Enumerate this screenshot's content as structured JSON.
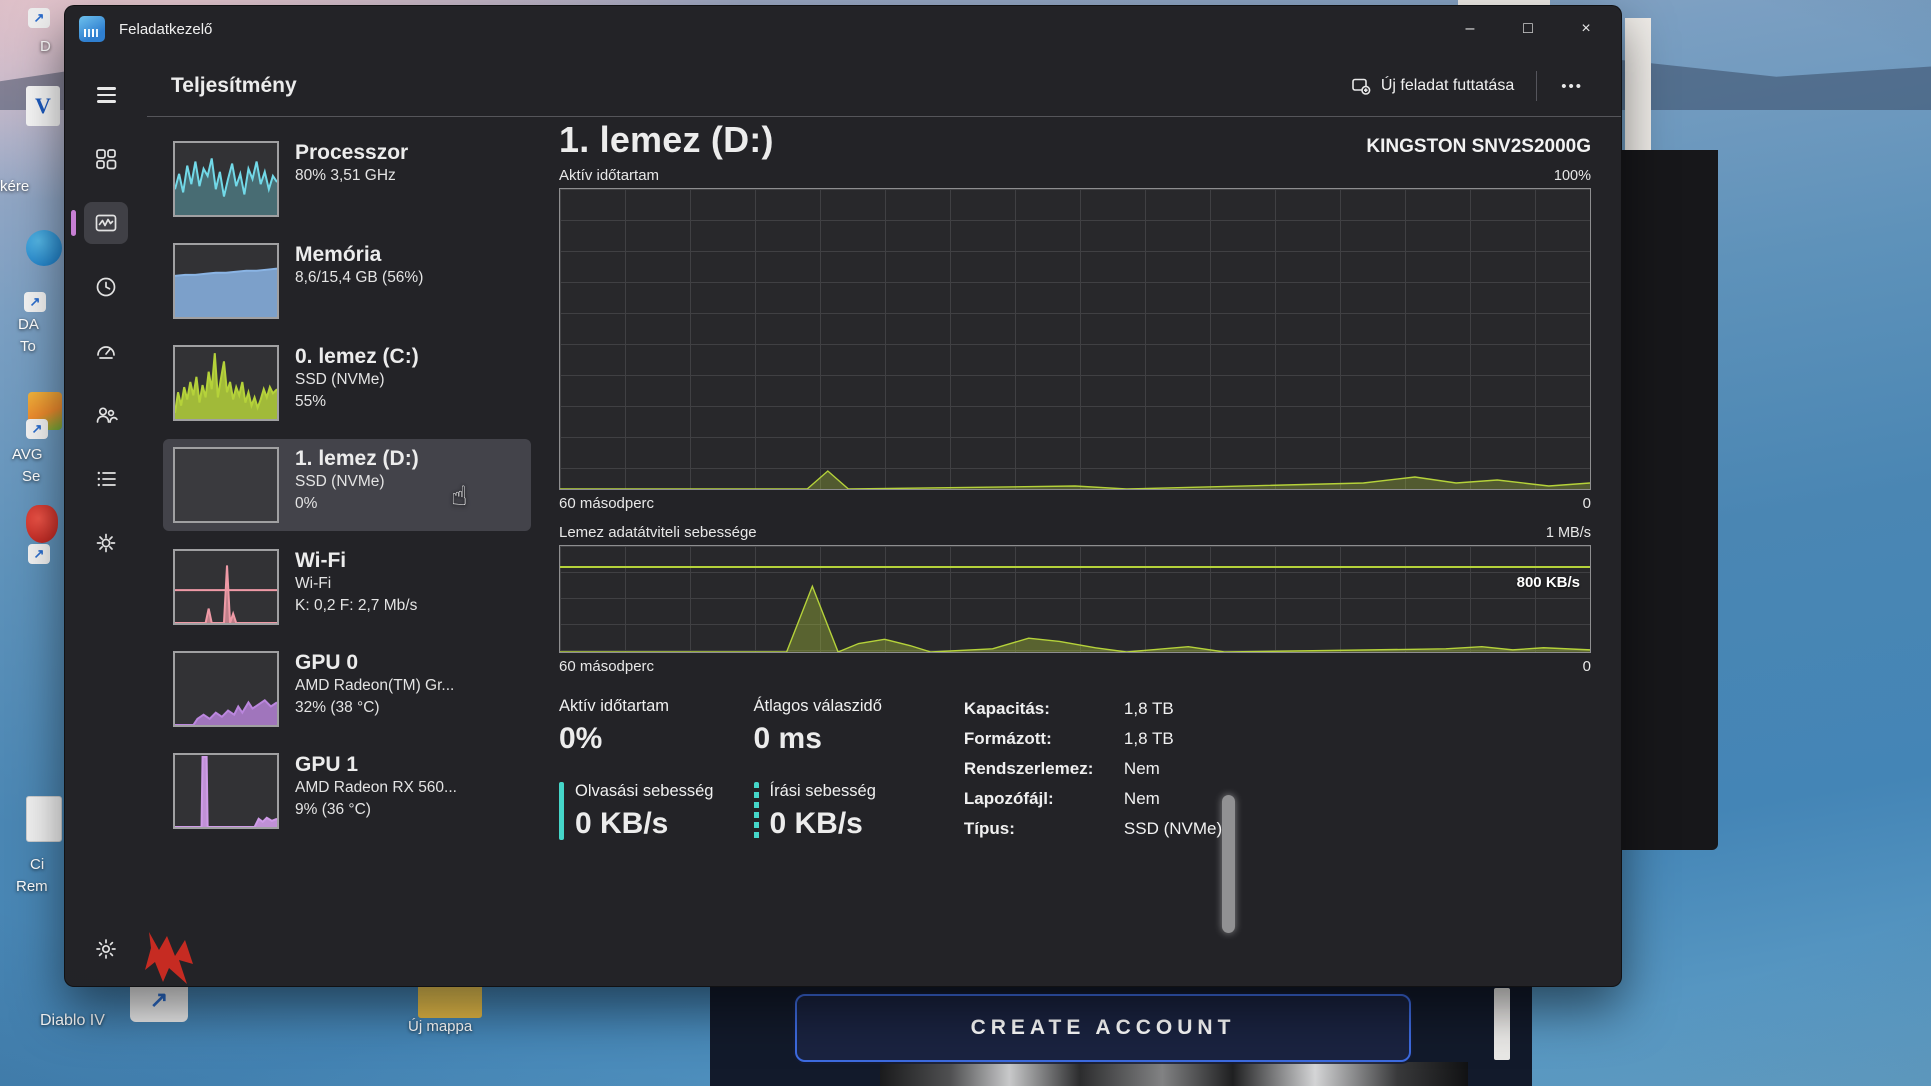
{
  "colors": {
    "accent": "#c77fd4",
    "teal": "#45d6c9",
    "green": "#b5d23a"
  },
  "titlebar": {
    "app_title": "Feladatkezelő",
    "minimize_glyph": "–",
    "maximize_glyph": "□",
    "close_glyph": "×"
  },
  "header": {
    "title": "Teljesítmény",
    "run_task_label": "Új feladat futtatása",
    "more_label": "•••"
  },
  "sidebar": {
    "items": [
      {
        "title": "Processzor",
        "line1": "80% 3,51 GHz"
      },
      {
        "title": "Memória",
        "line1": "8,6/15,4 GB (56%)"
      },
      {
        "title": "0. lemez (C:)",
        "line1": "SSD (NVMe)",
        "line2": "55%"
      },
      {
        "title": "1. lemez (D:)",
        "line1": "SSD (NVMe)",
        "line2": "0%"
      },
      {
        "title": "Wi-Fi",
        "line1": "Wi-Fi",
        "line2": "K: 0,2 F: 2,7 Mb/s"
      },
      {
        "title": "GPU 0",
        "line1": "AMD Radeon(TM) Gr...",
        "line2": "32% (38 °C)"
      },
      {
        "title": "GPU 1",
        "line1": "AMD Radeon RX 560...",
        "line2": "9% (36 °C)"
      }
    ]
  },
  "detail": {
    "title": "1. lemez (D:)",
    "device": "KINGSTON SNV2S2000G",
    "active_chart_label": "Aktív időtartam",
    "active_chart_max": "100%",
    "transfer_chart_label": "Lemez adatátviteli sebessége",
    "transfer_chart_max": "1 MB/s",
    "transfer_scale_label": "800 KB/s",
    "x_left": "60 másodperc",
    "x_right": "0",
    "stats": {
      "active_label": "Aktív időtartam",
      "active_value": "0%",
      "response_label": "Átlagos válaszidő",
      "response_value": "0 ms",
      "read_label": "Olvasási sebesség",
      "read_value": "0 KB/s",
      "write_label": "Írási sebesség",
      "write_value": "0 KB/s"
    },
    "info": [
      {
        "label": "Kapacitás:",
        "value": "1,8 TB"
      },
      {
        "label": "Formázott:",
        "value": "1,8 TB"
      },
      {
        "label": "Rendszerlemez:",
        "value": "Nem"
      },
      {
        "label": "Lapozófájl:",
        "value": "Nem"
      },
      {
        "label": "Típus:",
        "value": "SSD (NVMe)"
      }
    ]
  },
  "desktop": {
    "left_labels": [
      "D",
      "kére",
      "DA",
      "To",
      "AVG",
      "Se",
      "Ci",
      "Rem"
    ],
    "diablo_label": "Diablo IV",
    "new_folder_label": "Új mappa",
    "create_account_label": "CREATE ACCOUNT"
  },
  "icons": {
    "hand": "☝",
    "shortcut_arrow": "↗"
  },
  "chart_data": [
    {
      "id": "active-time",
      "type": "area",
      "title": "Aktív időtartam",
      "ylim": [
        0,
        100
      ],
      "unit": "%",
      "fill": "rgba(181,210,58,0.30)",
      "stroke": "#b5d23a",
      "points": [
        [
          0,
          0
        ],
        [
          0.24,
          0
        ],
        [
          0.26,
          6
        ],
        [
          0.28,
          0
        ],
        [
          0.5,
          1
        ],
        [
          0.55,
          0
        ],
        [
          0.78,
          2
        ],
        [
          0.83,
          4
        ],
        [
          0.87,
          2
        ],
        [
          0.91,
          3
        ],
        [
          0.96,
          1
        ],
        [
          1,
          2
        ]
      ]
    },
    {
      "id": "transfer-rate",
      "type": "area",
      "title": "Lemez adatátviteli sebessége",
      "ylim": [
        0,
        100
      ],
      "unit": "% of 1 MB/s",
      "scale_line_frac": 0.81,
      "fill": "rgba(181,210,58,0.35)",
      "stroke": "#b5d23a",
      "points": [
        [
          0,
          0
        ],
        [
          0.22,
          0
        ],
        [
          0.245,
          62
        ],
        [
          0.27,
          0
        ],
        [
          0.29,
          8
        ],
        [
          0.315,
          12
        ],
        [
          0.34,
          6
        ],
        [
          0.36,
          0
        ],
        [
          0.42,
          3
        ],
        [
          0.455,
          13
        ],
        [
          0.485,
          10
        ],
        [
          0.52,
          4
        ],
        [
          0.55,
          0
        ],
        [
          0.61,
          5
        ],
        [
          0.645,
          0
        ],
        [
          0.86,
          3
        ],
        [
          0.895,
          5
        ],
        [
          0.925,
          2
        ],
        [
          0.955,
          4
        ],
        [
          1,
          2
        ]
      ]
    }
  ],
  "sparklines": {
    "cpu": {
      "color": "#72d9e8",
      "fill_opacity": 0.35,
      "points": [
        [
          0,
          25
        ],
        [
          4,
          40
        ],
        [
          8,
          22
        ],
        [
          12,
          48
        ],
        [
          16,
          30
        ],
        [
          20,
          52
        ],
        [
          24,
          28
        ],
        [
          28,
          45
        ],
        [
          32,
          38
        ],
        [
          36,
          55
        ],
        [
          40,
          25
        ],
        [
          44,
          42
        ],
        [
          48,
          18
        ],
        [
          52,
          35
        ],
        [
          56,
          50
        ],
        [
          60,
          28
        ],
        [
          64,
          40
        ],
        [
          68,
          20
        ],
        [
          72,
          45
        ],
        [
          76,
          35
        ],
        [
          80,
          52
        ],
        [
          84,
          30
        ],
        [
          88,
          42
        ],
        [
          92,
          25
        ],
        [
          96,
          38
        ],
        [
          100,
          32
        ]
      ]
    },
    "memory": {
      "color": "#8ab4e4",
      "fill_opacity": 0.85,
      "points": [
        [
          0,
          40
        ],
        [
          10,
          41
        ],
        [
          20,
          41
        ],
        [
          30,
          42
        ],
        [
          40,
          43
        ],
        [
          50,
          43
        ],
        [
          60,
          44
        ],
        [
          70,
          45
        ],
        [
          80,
          45
        ],
        [
          90,
          46
        ],
        [
          100,
          47
        ]
      ]
    },
    "disk_c": {
      "color": "#b5d23a",
      "fill_opacity": 0.85,
      "points": [
        [
          0,
          6
        ],
        [
          3,
          26
        ],
        [
          6,
          13
        ],
        [
          9,
          31
        ],
        [
          12,
          19
        ],
        [
          15,
          36
        ],
        [
          18,
          23
        ],
        [
          21,
          41
        ],
        [
          24,
          16
        ],
        [
          27,
          33
        ],
        [
          30,
          21
        ],
        [
          33,
          46
        ],
        [
          36,
          29
        ],
        [
          39,
          64
        ],
        [
          42,
          21
        ],
        [
          45,
          39
        ],
        [
          48,
          56
        ],
        [
          51,
          26
        ],
        [
          54,
          36
        ],
        [
          57,
          19
        ],
        [
          60,
          31
        ],
        [
          63,
          23
        ],
        [
          66,
          36
        ],
        [
          69,
          16
        ],
        [
          72,
          26
        ],
        [
          75,
          13
        ],
        [
          78,
          21
        ],
        [
          81,
          11
        ],
        [
          84,
          19
        ],
        [
          87,
          29
        ],
        [
          90,
          21
        ],
        [
          93,
          31
        ],
        [
          96,
          25
        ],
        [
          100,
          29
        ]
      ]
    },
    "disk_d": {
      "color": "#b5d23a",
      "fill_opacity": 0,
      "points": []
    },
    "wifi": {
      "color": "#ef9aa6",
      "fill_opacity": 0.75,
      "hline": 32,
      "points": [
        [
          0,
          0
        ],
        [
          30,
          0
        ],
        [
          33,
          14
        ],
        [
          36,
          0
        ],
        [
          48,
          0
        ],
        [
          51,
          56
        ],
        [
          54,
          0
        ],
        [
          57,
          9
        ],
        [
          60,
          0
        ],
        [
          100,
          0
        ]
      ]
    },
    "gpu0": {
      "color": "#bb86de",
      "fill_opacity": 0.8,
      "points": [
        [
          0,
          0
        ],
        [
          18,
          0
        ],
        [
          22,
          6
        ],
        [
          28,
          10
        ],
        [
          34,
          6
        ],
        [
          40,
          12
        ],
        [
          46,
          8
        ],
        [
          52,
          14
        ],
        [
          58,
          10
        ],
        [
          62,
          18
        ],
        [
          66,
          12
        ],
        [
          72,
          22
        ],
        [
          76,
          16
        ],
        [
          82,
          20
        ],
        [
          88,
          24
        ],
        [
          94,
          18
        ],
        [
          100,
          22
        ]
      ]
    },
    "gpu1": {
      "color": "#cf9be8",
      "fill_opacity": 0.9,
      "points": [
        [
          0,
          0
        ],
        [
          26,
          0
        ],
        [
          27,
          68
        ],
        [
          31,
          68
        ],
        [
          32,
          0
        ],
        [
          78,
          0
        ],
        [
          82,
          8
        ],
        [
          86,
          5
        ],
        [
          90,
          9
        ],
        [
          95,
          6
        ],
        [
          100,
          8
        ]
      ]
    }
  }
}
